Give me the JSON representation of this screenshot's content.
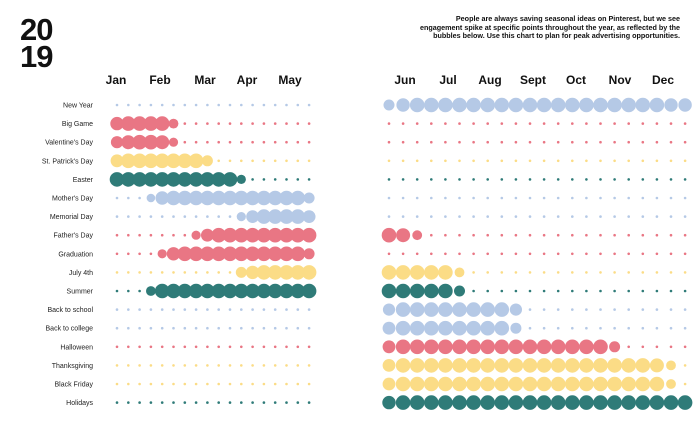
{
  "header": {
    "year_top": "20",
    "year_bottom": "19",
    "description": "People are always saving seasonal ideas on Pinterest, but we see engagement spike at specific points throughout the year, as reflected by the bubbles below. Use this chart to plan for peak advertising opportunities."
  },
  "colors": {
    "red": "#e97684",
    "blue": "#b5c9e6",
    "yellow": "#fbdc86",
    "teal": "#2f7b78"
  },
  "chart_data": {
    "type": "bubble-timeline",
    "year": 2019,
    "months_h1": [
      "Jan",
      "Feb",
      "Mar",
      "Apr",
      "May"
    ],
    "months_h2": [
      "Jun",
      "Jul",
      "Aug",
      "Sept",
      "Oct",
      "Nov",
      "Dec"
    ],
    "value_scale": "0 = no spike (small dot), 1 = peak engagement (largest bubble)",
    "series": [
      {
        "name": "New Year",
        "color": "blue",
        "h1": [
          0,
          0,
          0,
          0,
          0,
          0,
          0,
          0,
          0,
          0,
          0,
          0,
          0,
          0,
          0,
          0,
          0,
          0
        ],
        "h2": [
          0.7,
          0.9,
          1,
          1,
          1,
          1,
          1,
          1,
          1,
          1,
          1,
          1,
          1,
          1,
          1,
          1,
          1,
          1,
          1,
          1,
          0.9,
          0.9
        ]
      },
      {
        "name": "Big Game",
        "color": "red",
        "h1": [
          0.9,
          1,
          1,
          1,
          1,
          0.6,
          0,
          0,
          0,
          0,
          0,
          0,
          0,
          0,
          0,
          0,
          0,
          0
        ],
        "h2": [
          0,
          0,
          0,
          0,
          0,
          0,
          0,
          0,
          0,
          0,
          0,
          0,
          0,
          0,
          0,
          0,
          0,
          0,
          0,
          0,
          0,
          0
        ]
      },
      {
        "name": "Valentine's Day",
        "color": "red",
        "h1": [
          0.8,
          0.95,
          1,
          1,
          0.95,
          0.55,
          0,
          0,
          0,
          0,
          0,
          0,
          0,
          0,
          0,
          0,
          0,
          0
        ],
        "h2": [
          0,
          0,
          0,
          0,
          0,
          0,
          0,
          0,
          0,
          0,
          0,
          0,
          0,
          0,
          0,
          0,
          0,
          0,
          0,
          0,
          0,
          0
        ]
      },
      {
        "name": "St. Patrick's Day",
        "color": "yellow",
        "h1": [
          0.85,
          1,
          1,
          1,
          1,
          1,
          1,
          1,
          0.7,
          0,
          0,
          0,
          0,
          0,
          0,
          0,
          0,
          0
        ],
        "h2": [
          0,
          0,
          0,
          0,
          0,
          0,
          0,
          0,
          0,
          0,
          0,
          0,
          0,
          0,
          0,
          0,
          0,
          0,
          0,
          0,
          0,
          0
        ]
      },
      {
        "name": "Easter",
        "color": "teal",
        "h1": [
          1,
          1,
          1,
          1,
          1,
          1,
          1,
          1,
          1,
          1,
          1,
          0.55,
          0,
          0,
          0,
          0,
          0,
          0
        ],
        "h2": [
          0,
          0,
          0,
          0,
          0,
          0,
          0,
          0,
          0,
          0,
          0,
          0,
          0,
          0,
          0,
          0,
          0,
          0,
          0,
          0,
          0,
          0
        ]
      },
      {
        "name": "Mother's Day",
        "color": "blue",
        "h1": [
          0,
          0,
          0,
          0.5,
          0.9,
          1,
          1,
          1,
          1,
          1,
          1,
          1,
          1,
          1,
          1,
          1,
          1,
          0.7
        ],
        "h2": [
          0,
          0,
          0,
          0,
          0,
          0,
          0,
          0,
          0,
          0,
          0,
          0,
          0,
          0,
          0,
          0,
          0,
          0,
          0,
          0,
          0,
          0
        ]
      },
      {
        "name": "Memorial Day",
        "color": "blue",
        "h1": [
          0,
          0,
          0,
          0,
          0,
          0,
          0,
          0,
          0,
          0,
          0,
          0.55,
          0.85,
          1,
          1,
          1,
          1,
          0.85
        ],
        "h2": [
          0,
          0,
          0,
          0,
          0,
          0,
          0,
          0,
          0,
          0,
          0,
          0,
          0,
          0,
          0,
          0,
          0,
          0,
          0,
          0,
          0,
          0
        ]
      },
      {
        "name": "Father's Day",
        "color": "red",
        "h1": [
          0,
          0,
          0,
          0,
          0,
          0,
          0,
          0.55,
          0.85,
          1,
          1,
          1,
          1,
          1,
          1,
          1,
          1,
          1
        ],
        "h2": [
          1,
          0.95,
          0.6,
          0,
          0,
          0,
          0,
          0,
          0,
          0,
          0,
          0,
          0,
          0,
          0,
          0,
          0,
          0,
          0,
          0,
          0,
          0
        ]
      },
      {
        "name": "Graduation",
        "color": "red",
        "h1": [
          0,
          0,
          0,
          0,
          0.55,
          0.9,
          1,
          1,
          1,
          1,
          1,
          1,
          1,
          1,
          1,
          1,
          1,
          0.7
        ],
        "h2": [
          0,
          0,
          0,
          0,
          0,
          0,
          0,
          0,
          0,
          0,
          0,
          0,
          0,
          0,
          0,
          0,
          0,
          0,
          0,
          0,
          0,
          0
        ]
      },
      {
        "name": "July 4th",
        "color": "yellow",
        "h1": [
          0,
          0,
          0,
          0,
          0,
          0,
          0,
          0,
          0,
          0,
          0,
          0.7,
          0.9,
          1,
          1,
          1,
          1,
          1
        ],
        "h2": [
          1,
          1,
          1,
          1,
          1,
          0.6,
          0,
          0,
          0,
          0,
          0,
          0,
          0,
          0,
          0,
          0,
          0,
          0,
          0,
          0,
          0,
          0
        ]
      },
      {
        "name": "Summer",
        "color": "teal",
        "h1": [
          0,
          0,
          0,
          0.6,
          1,
          1,
          1,
          1,
          1,
          1,
          1,
          1,
          1,
          1,
          1,
          1,
          1,
          1
        ],
        "h2": [
          1,
          1,
          1,
          1,
          1,
          0.7,
          0,
          0,
          0,
          0,
          0,
          0,
          0,
          0,
          0,
          0,
          0,
          0,
          0,
          0,
          0,
          0
        ]
      },
      {
        "name": "Back to school",
        "color": "blue",
        "h1": [
          0,
          0,
          0,
          0,
          0,
          0,
          0,
          0,
          0,
          0,
          0,
          0,
          0,
          0,
          0,
          0,
          0,
          0
        ],
        "h2": [
          0.8,
          1,
          1,
          1,
          1,
          1,
          1,
          1,
          1,
          0.8,
          0,
          0,
          0,
          0,
          0,
          0,
          0,
          0,
          0,
          0,
          0,
          0
        ]
      },
      {
        "name": "Back to college",
        "color": "blue",
        "h1": [
          0,
          0,
          0,
          0,
          0,
          0,
          0,
          0,
          0,
          0,
          0,
          0,
          0,
          0,
          0,
          0,
          0,
          0
        ],
        "h2": [
          0.85,
          1,
          1,
          1,
          1,
          1,
          1,
          1,
          1,
          0.7,
          0,
          0,
          0,
          0,
          0,
          0,
          0,
          0,
          0,
          0,
          0,
          0
        ]
      },
      {
        "name": "Halloween",
        "color": "red",
        "h1": [
          0,
          0,
          0,
          0,
          0,
          0,
          0,
          0,
          0,
          0,
          0,
          0,
          0,
          0,
          0,
          0,
          0,
          0
        ],
        "h2": [
          0.85,
          1,
          1,
          1,
          1,
          1,
          1,
          1,
          1,
          1,
          1,
          1,
          1,
          1,
          1,
          1,
          0.7,
          0,
          0,
          0,
          0,
          0
        ]
      },
      {
        "name": "Thanksgiving",
        "color": "yellow",
        "h1": [
          0,
          0,
          0,
          0,
          0,
          0,
          0,
          0,
          0,
          0,
          0,
          0,
          0,
          0,
          0,
          0,
          0,
          0
        ],
        "h2": [
          0.85,
          1,
          1,
          1,
          1,
          1,
          1,
          1,
          1,
          1,
          1,
          1,
          1,
          1,
          1,
          1,
          1,
          1,
          1,
          0.95,
          0.6,
          0
        ]
      },
      {
        "name": "Black Friday",
        "color": "yellow",
        "h1": [
          0,
          0,
          0,
          0,
          0,
          0,
          0,
          0,
          0,
          0,
          0,
          0,
          0,
          0,
          0,
          0,
          0,
          0
        ],
        "h2": [
          0.85,
          1,
          1,
          1,
          1,
          1,
          1,
          1,
          1,
          1,
          1,
          1,
          1,
          1,
          1,
          1,
          1,
          1,
          1,
          1,
          0.6,
          0
        ]
      },
      {
        "name": "Holidays",
        "color": "teal",
        "h1": [
          0,
          0,
          0,
          0,
          0,
          0,
          0,
          0,
          0,
          0,
          0,
          0,
          0,
          0,
          0,
          0,
          0,
          0
        ],
        "h2": [
          0.9,
          1,
          1,
          1,
          1,
          1,
          1,
          1,
          1,
          1,
          1,
          1,
          1,
          1,
          1,
          1,
          1,
          1,
          1,
          1,
          1,
          1
        ]
      }
    ]
  }
}
